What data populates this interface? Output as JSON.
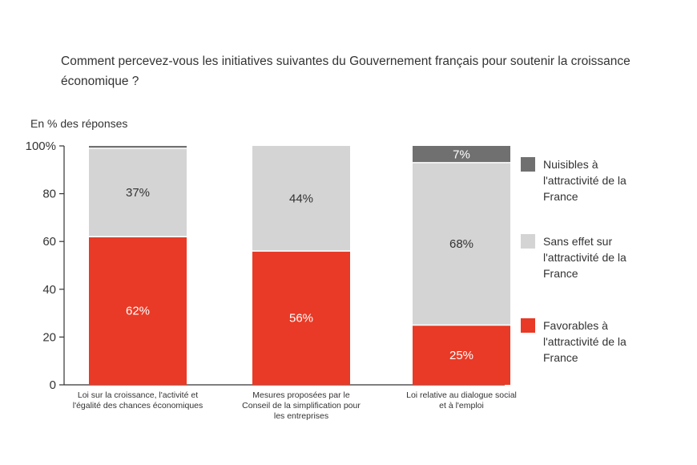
{
  "question": "Comment percevez-vous les initiatives suivantes du Gouvernement français pour soutenir la croissance économique ?",
  "unit_label": "En % des réponses",
  "colors": {
    "nuisibles": "#707070",
    "sans_effet": "#d4d4d4",
    "favorables": "#e83a26"
  },
  "chart_data": {
    "type": "bar",
    "stacked": true,
    "ylim": [
      0,
      100
    ],
    "yticks": [
      "0",
      "20",
      "40",
      "60",
      "80",
      "100%"
    ],
    "categories": [
      [
        "Loi sur la croissance, l'activité et",
        "l'égalité des chances économiques"
      ],
      [
        "Mesures proposées par le",
        "Conseil de la simplification pour",
        "les entreprises"
      ],
      [
        "Loi relative au dialogue social",
        "et à l'emploi"
      ]
    ],
    "series": [
      {
        "name": "Favorables à l'attractivité de la France",
        "key": "favorables",
        "values": [
          62,
          56,
          25
        ],
        "labels": [
          "62%",
          "56%",
          "25%"
        ]
      },
      {
        "name": "Sans effet sur l'attractivité de la France",
        "key": "sans_effet",
        "values": [
          37,
          44,
          68
        ],
        "labels": [
          "37%",
          "44%",
          "68%"
        ]
      },
      {
        "name": "Nuisibles à l'attractivité de la France",
        "key": "nuisibles",
        "values": [
          1,
          0,
          7
        ],
        "labels": [
          "",
          "",
          "7%"
        ]
      }
    ],
    "grid": false,
    "legend_position": "right"
  },
  "legend": [
    {
      "key": "nuisibles",
      "text": "Nuisibles à\nl'attractivité de la\nFrance"
    },
    {
      "key": "sans_effet",
      "text": "Sans effet sur\nl'attractivité de la\nFrance"
    },
    {
      "key": "favorables",
      "text": "Favorables à\nl'attractivité de la\nFrance"
    }
  ]
}
